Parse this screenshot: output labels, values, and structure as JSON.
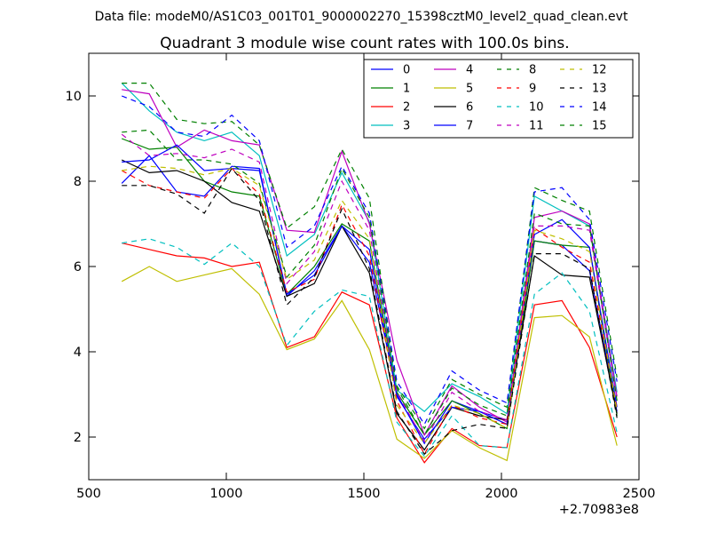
{
  "chart_data": {
    "type": "line",
    "supertitle": "Data file: modeM0/AS1C03_001T01_9000002270_15398cztM0_level2_quad_clean.evt",
    "title": "Quadrant 3 module wise count rates with 100.0s bins.",
    "xlabel": "",
    "ylabel": "",
    "xlim": [
      500,
      2500
    ],
    "ylim": [
      1,
      11
    ],
    "x_ticks": [
      500,
      1000,
      1500,
      2000,
      2500
    ],
    "x_tick_labels": [
      "500",
      "1000",
      "1500",
      "2000",
      "2500"
    ],
    "y_ticks": [
      2,
      4,
      6,
      8,
      10
    ],
    "y_tick_labels": [
      "2",
      "4",
      "6",
      "8",
      "10"
    ],
    "x_offset_label": "+2.70983e8",
    "grid": false,
    "legend_placement": "top-right",
    "x": [
      620,
      720,
      820,
      920,
      1020,
      1120,
      1220,
      1320,
      1420,
      1520,
      1620,
      1720,
      1820,
      1920,
      2020,
      2120,
      2220,
      2320,
      2420
    ],
    "series": [
      {
        "name": "0",
        "color": "#0000ff",
        "dash": "solid",
        "values": [
          7.95,
          8.6,
          7.75,
          7.65,
          8.35,
          8.3,
          5.3,
          5.9,
          6.95,
          6.1,
          3.0,
          1.85,
          2.85,
          2.6,
          2.4,
          6.6,
          6.5,
          5.9,
          2.6
        ]
      },
      {
        "name": "1",
        "color": "#008000",
        "dash": "solid",
        "values": [
          9.0,
          8.75,
          8.8,
          8.0,
          7.75,
          7.65,
          5.35,
          6.0,
          7.0,
          6.6,
          3.05,
          2.05,
          2.85,
          2.55,
          2.2,
          6.6,
          6.5,
          6.45,
          2.5
        ]
      },
      {
        "name": "2",
        "color": "#ff0000",
        "dash": "solid",
        "values": [
          6.55,
          6.4,
          6.25,
          6.2,
          6.0,
          6.1,
          4.1,
          4.35,
          5.4,
          5.1,
          2.45,
          1.4,
          2.2,
          1.8,
          1.75,
          5.1,
          5.2,
          4.1,
          2.0
        ]
      },
      {
        "name": "3",
        "color": "#00bfbf",
        "dash": "solid",
        "values": [
          10.3,
          9.65,
          9.15,
          8.95,
          9.15,
          8.6,
          6.25,
          6.75,
          8.2,
          7.05,
          3.1,
          2.6,
          3.25,
          2.95,
          2.55,
          7.65,
          7.3,
          6.95,
          3.05
        ]
      },
      {
        "name": "4",
        "color": "#bf00bf",
        "dash": "solid",
        "values": [
          10.15,
          10.05,
          8.8,
          9.2,
          8.95,
          8.85,
          6.85,
          6.8,
          8.7,
          7.0,
          3.8,
          2.05,
          3.2,
          2.7,
          2.35,
          7.15,
          7.3,
          7.0,
          2.95
        ]
      },
      {
        "name": "5",
        "color": "#bfbf00",
        "dash": "solid",
        "values": [
          5.65,
          6.0,
          5.65,
          5.8,
          5.95,
          5.35,
          4.05,
          4.3,
          5.2,
          4.05,
          1.95,
          1.5,
          2.15,
          1.75,
          1.45,
          4.8,
          4.85,
          4.35,
          1.8
        ]
      },
      {
        "name": "6",
        "color": "#000000",
        "dash": "solid",
        "values": [
          8.5,
          8.2,
          8.25,
          8.0,
          7.5,
          7.3,
          5.3,
          5.6,
          6.95,
          5.85,
          2.55,
          1.7,
          2.7,
          2.5,
          2.4,
          6.25,
          5.8,
          5.75,
          2.55
        ]
      },
      {
        "name": "7",
        "color": "#0000ff",
        "dash": "solid",
        "values": [
          8.45,
          8.5,
          8.85,
          8.25,
          8.3,
          8.25,
          5.35,
          5.8,
          6.95,
          6.4,
          2.95,
          1.95,
          2.7,
          2.6,
          2.3,
          6.75,
          7.1,
          6.45,
          2.7
        ]
      },
      {
        "name": "8",
        "color": "#008000",
        "dash": "dashed",
        "values": [
          10.3,
          10.3,
          9.45,
          9.35,
          9.4,
          8.85,
          6.9,
          7.4,
          8.75,
          7.6,
          3.2,
          2.2,
          3.35,
          3.0,
          2.7,
          7.85,
          7.55,
          7.3,
          3.4
        ]
      },
      {
        "name": "9",
        "color": "#ff0000",
        "dash": "dashed",
        "values": [
          8.25,
          7.9,
          7.75,
          7.6,
          8.3,
          7.7,
          5.4,
          5.7,
          7.45,
          6.25,
          2.85,
          1.6,
          2.75,
          2.45,
          2.3,
          6.9,
          6.45,
          6.1,
          2.65
        ]
      },
      {
        "name": "10",
        "color": "#00bfbf",
        "dash": "dashed",
        "values": [
          6.55,
          6.65,
          6.45,
          6.05,
          6.55,
          6.0,
          4.15,
          4.95,
          5.45,
          5.3,
          2.35,
          1.55,
          2.5,
          1.8,
          1.75,
          5.35,
          5.85,
          4.95,
          2.1
        ]
      },
      {
        "name": "11",
        "color": "#bf00bf",
        "dash": "dashed",
        "values": [
          9.1,
          8.6,
          8.65,
          8.55,
          8.75,
          8.45,
          5.6,
          6.35,
          8.0,
          6.85,
          3.05,
          1.9,
          3.05,
          2.6,
          2.4,
          6.95,
          6.95,
          6.85,
          2.9
        ]
      },
      {
        "name": "12",
        "color": "#bfbf00",
        "dash": "dashed",
        "values": [
          8.25,
          8.35,
          8.3,
          8.15,
          8.3,
          7.9,
          5.7,
          6.15,
          7.55,
          6.65,
          2.75,
          1.85,
          2.75,
          2.55,
          2.2,
          6.85,
          6.65,
          6.35,
          2.6
        ]
      },
      {
        "name": "13",
        "color": "#000000",
        "dash": "dashed",
        "values": [
          7.9,
          7.9,
          7.7,
          7.25,
          8.3,
          7.55,
          5.1,
          5.75,
          7.35,
          5.95,
          2.6,
          1.6,
          2.15,
          2.3,
          2.2,
          6.3,
          6.3,
          5.95,
          2.45
        ]
      },
      {
        "name": "14",
        "color": "#0000ff",
        "dash": "dashed",
        "values": [
          10.0,
          9.75,
          9.15,
          9.05,
          9.55,
          8.95,
          6.45,
          6.95,
          8.35,
          7.25,
          3.3,
          2.3,
          3.55,
          3.1,
          2.8,
          7.75,
          7.85,
          7.1,
          3.3
        ]
      },
      {
        "name": "15",
        "color": "#008000",
        "dash": "dashed",
        "values": [
          9.15,
          9.2,
          8.5,
          8.5,
          8.4,
          7.95,
          5.75,
          6.5,
          8.3,
          7.15,
          3.15,
          2.05,
          3.15,
          2.75,
          2.5,
          7.25,
          7.0,
          6.95,
          2.85
        ]
      }
    ]
  }
}
